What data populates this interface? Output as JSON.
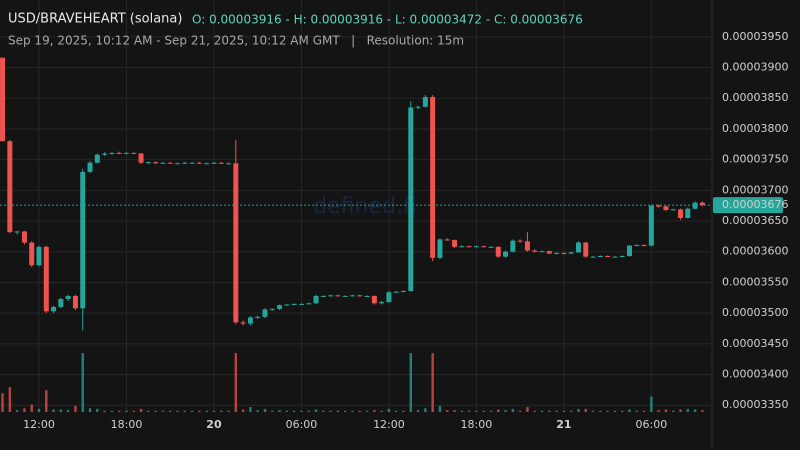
{
  "chart_data": {
    "type": "candlestick",
    "title": "USD/BRAVEHEART (solana)",
    "ohlc_text": "O: 0.00003916 - H: 0.00003916 - L: 0.00003472 - C: 0.00003676",
    "subtitle": "Sep 19, 2025, 10:12 AM - Sep 21, 2025, 10:12 AM GMT   |   Resolution: 15m",
    "watermark": "defined.fi",
    "up_color": "#26a69a",
    "down_color": "#ef5350",
    "ylim": [
      3.339e-05,
      4.01e-05
    ],
    "yticks": [
      {
        "value": 3.35e-05,
        "label": "0.00003350"
      },
      {
        "value": 3.4e-05,
        "label": "0.00003400"
      },
      {
        "value": 3.45e-05,
        "label": "0.00003450"
      },
      {
        "value": 3.5e-05,
        "label": "0.00003500"
      },
      {
        "value": 3.55e-05,
        "label": "0.00003550"
      },
      {
        "value": 3.6e-05,
        "label": "0.00003600"
      },
      {
        "value": 3.65e-05,
        "label": "0.00003650"
      },
      {
        "value": 3.7e-05,
        "label": "0.00003700"
      },
      {
        "value": 3.75e-05,
        "label": "0.00003750"
      },
      {
        "value": 3.8e-05,
        "label": "0.00003800"
      },
      {
        "value": 3.85e-05,
        "label": "0.00003850"
      },
      {
        "value": 3.9e-05,
        "label": "0.00003900"
      },
      {
        "value": 3.95e-05,
        "label": "0.00003950"
      }
    ],
    "grid": true,
    "last_price": 3.676e-05,
    "vlim": [
      0,
      100
    ],
    "categories": [
      null,
      null,
      null,
      null,
      null,
      "12:00",
      null,
      null,
      null,
      null,
      null,
      null,
      null,
      null,
      null,
      null,
      null,
      "18:00",
      null,
      null,
      null,
      null,
      null,
      null,
      null,
      null,
      null,
      null,
      null,
      "20",
      null,
      null,
      null,
      null,
      null,
      null,
      null,
      null,
      null,
      null,
      null,
      "06:00",
      null,
      null,
      null,
      null,
      null,
      null,
      null,
      null,
      null,
      null,
      null,
      "12:00",
      null,
      null,
      null,
      null,
      null,
      null,
      null,
      null,
      null,
      null,
      null,
      "18:00",
      null,
      null,
      null,
      null,
      null,
      null,
      null,
      null,
      null,
      null,
      null,
      "21",
      null,
      null,
      null,
      null,
      null,
      null,
      null,
      null,
      null,
      null,
      null,
      "06:00",
      null,
      null,
      null,
      null,
      null,
      null,
      null
    ],
    "open": [
      3.916e-05,
      3.78e-05,
      3.632e-05,
      3.633e-05,
      3.615e-05,
      3.578e-05,
      3.608e-05,
      3.503e-05,
      3.51e-05,
      3.523e-05,
      3.528e-05,
      3.508e-05,
      3.73e-05,
      3.745e-05,
      3.758e-05,
      3.76e-05,
      3.761e-05,
      3.76e-05,
      3.761e-05,
      3.76e-05,
      3.745e-05,
      3.746e-05,
      3.744e-05,
      3.745e-05,
      3.744e-05,
      3.744e-05,
      3.745e-05,
      3.745e-05,
      3.744e-05,
      3.744e-05,
      3.745e-05,
      3.744e-05,
      3.744e-05,
      3.485e-05,
      3.483e-05,
      3.493e-05,
      3.494e-05,
      3.506e-05,
      3.507e-05,
      3.513e-05,
      3.514e-05,
      3.515e-05,
      3.515e-05,
      3.516e-05,
      3.528e-05,
      3.528e-05,
      3.529e-05,
      3.528e-05,
      3.528e-05,
      3.529e-05,
      3.528e-05,
      3.528e-05,
      3.516e-05,
      3.518e-05,
      3.534e-05,
      3.535e-05,
      3.536e-05,
      3.835e-05,
      3.836e-05,
      3.852e-05,
      3.59e-05,
      3.62e-05,
      3.619e-05,
      3.608e-05,
      3.609e-05,
      3.608e-05,
      3.609e-05,
      3.608e-05,
      3.608e-05,
      3.592e-05,
      3.6e-05,
      3.618e-05,
      3.617e-05,
      3.602e-05,
      3.6e-05,
      3.601e-05,
      3.597e-05,
      3.598e-05,
      3.597e-05,
      3.599e-05,
      3.615e-05,
      3.592e-05,
      3.592e-05,
      3.593e-05,
      3.592e-05,
      3.592e-05,
      3.593e-05,
      3.61e-05,
      3.611e-05,
      3.61e-05,
      3.675e-05,
      3.674e-05,
      3.668e-05,
      3.669e-05,
      3.655e-05,
      3.67e-05,
      3.68e-05
    ],
    "high": [
      3.916e-05,
      3.782e-05,
      3.634e-05,
      3.634e-05,
      3.617e-05,
      3.61e-05,
      3.61e-05,
      3.512e-05,
      3.525e-05,
      3.53e-05,
      3.53e-05,
      3.735e-05,
      3.748e-05,
      3.76e-05,
      3.762e-05,
      3.762e-05,
      3.763e-05,
      3.762e-05,
      3.762e-05,
      3.761e-05,
      3.747e-05,
      3.747e-05,
      3.746e-05,
      3.746e-05,
      3.745e-05,
      3.746e-05,
      3.746e-05,
      3.746e-05,
      3.745e-05,
      3.746e-05,
      3.746e-05,
      3.745e-05,
      3.782e-05,
      3.488e-05,
      3.495e-05,
      3.496e-05,
      3.508e-05,
      3.508e-05,
      3.514e-05,
      3.515e-05,
      3.516e-05,
      3.516e-05,
      3.517e-05,
      3.53e-05,
      3.529e-05,
      3.53e-05,
      3.53e-05,
      3.529e-05,
      3.53e-05,
      3.53e-05,
      3.529e-05,
      3.529e-05,
      3.52e-05,
      3.536e-05,
      3.536e-05,
      3.537e-05,
      3.845e-05,
      3.838e-05,
      3.855e-05,
      3.855e-05,
      3.622e-05,
      3.622e-05,
      3.62e-05,
      3.61e-05,
      3.61e-05,
      3.61e-05,
      3.61e-05,
      3.609e-05,
      3.609e-05,
      3.602e-05,
      3.62e-05,
      3.62e-05,
      3.632e-05,
      3.604e-05,
      3.602e-05,
      3.602e-05,
      3.599e-05,
      3.599e-05,
      3.6e-05,
      3.617e-05,
      3.616e-05,
      3.593e-05,
      3.594e-05,
      3.594e-05,
      3.593e-05,
      3.594e-05,
      3.611e-05,
      3.612e-05,
      3.612e-05,
      3.676e-05,
      3.677e-05,
      3.675e-05,
      3.67e-05,
      3.67e-05,
      3.672e-05,
      3.682e-05,
      3.682e-05
    ],
    "low": [
      3.78e-05,
      3.63e-05,
      3.628e-05,
      3.612e-05,
      3.575e-05,
      3.576e-05,
      3.5e-05,
      3.5e-05,
      3.508e-05,
      3.52e-05,
      3.505e-05,
      3.472e-05,
      3.728e-05,
      3.744e-05,
      3.756e-05,
      3.758e-05,
      3.759e-05,
      3.759e-05,
      3.759e-05,
      3.743e-05,
      3.743e-05,
      3.743e-05,
      3.743e-05,
      3.743e-05,
      3.743e-05,
      3.743e-05,
      3.744e-05,
      3.743e-05,
      3.743e-05,
      3.743e-05,
      3.743e-05,
      3.743e-05,
      3.482e-05,
      3.48e-05,
      3.48e-05,
      3.491e-05,
      3.492e-05,
      3.504e-05,
      3.505e-05,
      3.512e-05,
      3.513e-05,
      3.514e-05,
      3.514e-05,
      3.515e-05,
      3.527e-05,
      3.527e-05,
      3.527e-05,
      3.527e-05,
      3.527e-05,
      3.527e-05,
      3.527e-05,
      3.514e-05,
      3.514e-05,
      3.517e-05,
      3.533e-05,
      3.534e-05,
      3.535e-05,
      3.832e-05,
      3.835e-05,
      3.585e-05,
      3.588e-05,
      3.618e-05,
      3.606e-05,
      3.607e-05,
      3.607e-05,
      3.607e-05,
      3.607e-05,
      3.607e-05,
      3.59e-05,
      3.59e-05,
      3.599e-05,
      3.615e-05,
      3.6e-05,
      3.599e-05,
      3.599e-05,
      3.596e-05,
      3.596e-05,
      3.596e-05,
      3.596e-05,
      3.598e-05,
      3.59e-05,
      3.591e-05,
      3.591e-05,
      3.591e-05,
      3.591e-05,
      3.591e-05,
      3.592e-05,
      3.609e-05,
      3.609e-05,
      3.609e-05,
      3.672e-05,
      3.666e-05,
      3.667e-05,
      3.652e-05,
      3.654e-05,
      3.669e-05,
      3.674e-05
    ],
    "close": [
      3.78e-05,
      3.632e-05,
      3.633e-05,
      3.615e-05,
      3.578e-05,
      3.608e-05,
      3.503e-05,
      3.51e-05,
      3.523e-05,
      3.528e-05,
      3.508e-05,
      3.73e-05,
      3.745e-05,
      3.758e-05,
      3.76e-05,
      3.761e-05,
      3.76e-05,
      3.761e-05,
      3.76e-05,
      3.745e-05,
      3.746e-05,
      3.744e-05,
      3.745e-05,
      3.744e-05,
      3.744e-05,
      3.745e-05,
      3.745e-05,
      3.744e-05,
      3.744e-05,
      3.745e-05,
      3.744e-05,
      3.744e-05,
      3.485e-05,
      3.483e-05,
      3.493e-05,
      3.494e-05,
      3.506e-05,
      3.507e-05,
      3.513e-05,
      3.514e-05,
      3.515e-05,
      3.515e-05,
      3.516e-05,
      3.528e-05,
      3.528e-05,
      3.529e-05,
      3.528e-05,
      3.528e-05,
      3.529e-05,
      3.528e-05,
      3.528e-05,
      3.516e-05,
      3.518e-05,
      3.534e-05,
      3.535e-05,
      3.536e-05,
      3.835e-05,
      3.836e-05,
      3.852e-05,
      3.59e-05,
      3.62e-05,
      3.619e-05,
      3.608e-05,
      3.609e-05,
      3.608e-05,
      3.609e-05,
      3.608e-05,
      3.608e-05,
      3.592e-05,
      3.6e-05,
      3.618e-05,
      3.617e-05,
      3.602e-05,
      3.6e-05,
      3.601e-05,
      3.597e-05,
      3.598e-05,
      3.597e-05,
      3.599e-05,
      3.615e-05,
      3.592e-05,
      3.592e-05,
      3.593e-05,
      3.592e-05,
      3.592e-05,
      3.593e-05,
      3.61e-05,
      3.611e-05,
      3.61e-05,
      3.675e-05,
      3.674e-05,
      3.668e-05,
      3.669e-05,
      3.655e-05,
      3.67e-05,
      3.68e-05,
      3.676e-05
    ],
    "volume": [
      30,
      40,
      3,
      6,
      12,
      5,
      35,
      4,
      4,
      3,
      10,
      95,
      6,
      5,
      2,
      2,
      2,
      2,
      2,
      5,
      2,
      2,
      2,
      2,
      2,
      2,
      2,
      2,
      2,
      2,
      2,
      2,
      95,
      4,
      8,
      3,
      5,
      2,
      3,
      2,
      2,
      2,
      2,
      4,
      2,
      2,
      2,
      2,
      2,
      2,
      2,
      3,
      2,
      5,
      2,
      2,
      95,
      3,
      6,
      95,
      10,
      3,
      3,
      2,
      2,
      2,
      2,
      2,
      4,
      3,
      5,
      2,
      8,
      2,
      2,
      2,
      2,
      2,
      2,
      5,
      5,
      2,
      2,
      2,
      2,
      2,
      4,
      2,
      2,
      25,
      3,
      4,
      2,
      4,
      5,
      4,
      3
    ]
  }
}
